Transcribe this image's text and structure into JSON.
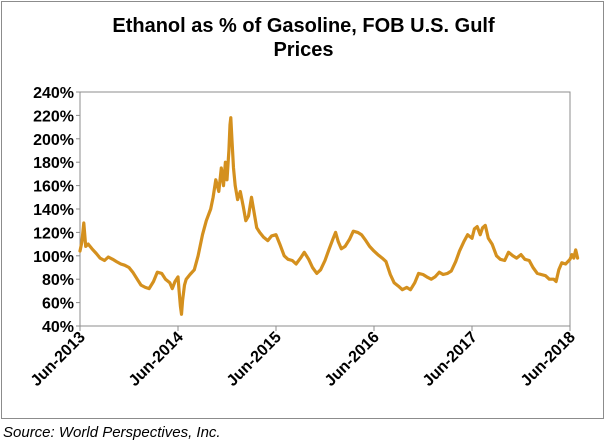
{
  "chart_data": {
    "type": "line",
    "title": "Ethanol as %  of Gasoline, FOB U.S. Gulf Prices",
    "title_lines": [
      "Ethanol as %  of Gasoline, FOB U.S. Gulf",
      "Prices"
    ],
    "xlabel": "",
    "ylabel": "",
    "ylim": [
      40,
      240
    ],
    "y_ticks": [
      40,
      60,
      80,
      100,
      120,
      140,
      160,
      180,
      200,
      220,
      240
    ],
    "y_tick_labels": [
      "40%",
      "60%",
      "80%",
      "100%",
      "120%",
      "140%",
      "160%",
      "180%",
      "200%",
      "220%",
      "240%"
    ],
    "xlim": [
      "2013-06",
      "2018-06"
    ],
    "x_tick_labels": [
      "Jun-2013",
      "Jun-2014",
      "Jun-2015",
      "Jun-2016",
      "Jun-2017",
      "Jun-2018"
    ],
    "grid": false,
    "line_color": "#D4901E",
    "series": [
      {
        "points": [
          [
            "2013-06-01",
            104
          ],
          [
            "2013-06-08",
            112
          ],
          [
            "2013-06-15",
            128
          ],
          [
            "2013-06-22",
            108
          ],
          [
            "2013-07-01",
            110
          ],
          [
            "2013-07-15",
            106
          ],
          [
            "2013-08-01",
            102
          ],
          [
            "2013-08-15",
            98
          ],
          [
            "2013-09-01",
            96
          ],
          [
            "2013-09-15",
            99
          ],
          [
            "2013-10-01",
            97
          ],
          [
            "2013-10-15",
            95
          ],
          [
            "2013-11-01",
            93
          ],
          [
            "2013-11-15",
            92
          ],
          [
            "2013-12-01",
            90
          ],
          [
            "2013-12-15",
            86
          ],
          [
            "2014-01-01",
            80
          ],
          [
            "2014-01-15",
            75
          ],
          [
            "2014-02-01",
            73
          ],
          [
            "2014-02-15",
            72
          ],
          [
            "2014-03-01",
            78
          ],
          [
            "2014-03-15",
            86
          ],
          [
            "2014-04-01",
            85
          ],
          [
            "2014-04-15",
            80
          ],
          [
            "2014-05-01",
            77
          ],
          [
            "2014-05-10",
            72
          ],
          [
            "2014-05-20",
            78
          ],
          [
            "2014-06-01",
            82
          ],
          [
            "2014-06-05",
            70
          ],
          [
            "2014-06-10",
            57
          ],
          [
            "2014-06-14",
            50
          ],
          [
            "2014-06-18",
            62
          ],
          [
            "2014-06-25",
            75
          ],
          [
            "2014-07-01",
            80
          ],
          [
            "2014-07-15",
            84
          ],
          [
            "2014-08-01",
            88
          ],
          [
            "2014-08-15",
            100
          ],
          [
            "2014-09-01",
            118
          ],
          [
            "2014-09-15",
            130
          ],
          [
            "2014-10-01",
            140
          ],
          [
            "2014-10-10",
            150
          ],
          [
            "2014-10-20",
            165
          ],
          [
            "2014-11-01",
            155
          ],
          [
            "2014-11-10",
            175
          ],
          [
            "2014-11-18",
            160
          ],
          [
            "2014-11-25",
            180
          ],
          [
            "2014-12-01",
            165
          ],
          [
            "2014-12-08",
            190
          ],
          [
            "2014-12-12",
            212
          ],
          [
            "2014-12-15",
            218
          ],
          [
            "2014-12-19",
            200
          ],
          [
            "2014-12-25",
            175
          ],
          [
            "2015-01-01",
            160
          ],
          [
            "2015-01-10",
            148
          ],
          [
            "2015-01-20",
            155
          ],
          [
            "2015-02-01",
            142
          ],
          [
            "2015-02-10",
            130
          ],
          [
            "2015-02-20",
            134
          ],
          [
            "2015-03-01",
            150
          ],
          [
            "2015-03-10",
            138
          ],
          [
            "2015-03-20",
            124
          ],
          [
            "2015-04-01",
            120
          ],
          [
            "2015-04-15",
            116
          ],
          [
            "2015-05-01",
            113
          ],
          [
            "2015-05-15",
            117
          ],
          [
            "2015-06-01",
            118
          ],
          [
            "2015-06-15",
            110
          ],
          [
            "2015-07-01",
            100
          ],
          [
            "2015-07-15",
            97
          ],
          [
            "2015-08-01",
            96
          ],
          [
            "2015-08-15",
            93
          ],
          [
            "2015-09-01",
            98
          ],
          [
            "2015-09-15",
            103
          ],
          [
            "2015-10-01",
            97
          ],
          [
            "2015-10-15",
            90
          ],
          [
            "2015-11-01",
            85
          ],
          [
            "2015-11-15",
            88
          ],
          [
            "2015-12-01",
            96
          ],
          [
            "2015-12-15",
            105
          ],
          [
            "2016-01-01",
            115
          ],
          [
            "2016-01-10",
            120
          ],
          [
            "2016-01-20",
            112
          ],
          [
            "2016-02-01",
            106
          ],
          [
            "2016-02-15",
            108
          ],
          [
            "2016-03-01",
            114
          ],
          [
            "2016-03-15",
            121
          ],
          [
            "2016-04-01",
            120
          ],
          [
            "2016-04-15",
            118
          ],
          [
            "2016-05-01",
            113
          ],
          [
            "2016-05-15",
            108
          ],
          [
            "2016-06-01",
            104
          ],
          [
            "2016-06-15",
            101
          ],
          [
            "2016-07-01",
            98
          ],
          [
            "2016-07-15",
            95
          ],
          [
            "2016-08-01",
            84
          ],
          [
            "2016-08-15",
            77
          ],
          [
            "2016-09-01",
            74
          ],
          [
            "2016-09-15",
            71
          ],
          [
            "2016-10-01",
            73
          ],
          [
            "2016-10-15",
            71
          ],
          [
            "2016-11-01",
            77
          ],
          [
            "2016-11-15",
            85
          ],
          [
            "2016-12-01",
            84
          ],
          [
            "2016-12-15",
            82
          ],
          [
            "2017-01-01",
            80
          ],
          [
            "2017-01-15",
            82
          ],
          [
            "2017-02-01",
            86
          ],
          [
            "2017-02-15",
            84
          ],
          [
            "2017-03-01",
            85
          ],
          [
            "2017-03-15",
            87
          ],
          [
            "2017-04-01",
            95
          ],
          [
            "2017-04-15",
            104
          ],
          [
            "2017-05-01",
            112
          ],
          [
            "2017-05-15",
            118
          ],
          [
            "2017-06-01",
            115
          ],
          [
            "2017-06-10",
            123
          ],
          [
            "2017-06-20",
            125
          ],
          [
            "2017-07-01",
            118
          ],
          [
            "2017-07-10",
            124
          ],
          [
            "2017-07-20",
            126
          ],
          [
            "2017-08-01",
            115
          ],
          [
            "2017-08-15",
            110
          ],
          [
            "2017-09-01",
            100
          ],
          [
            "2017-09-15",
            97
          ],
          [
            "2017-10-01",
            96
          ],
          [
            "2017-10-15",
            103
          ],
          [
            "2017-11-01",
            100
          ],
          [
            "2017-11-15",
            98
          ],
          [
            "2017-12-01",
            101
          ],
          [
            "2017-12-15",
            97
          ],
          [
            "2018-01-01",
            96
          ],
          [
            "2018-01-15",
            90
          ],
          [
            "2018-02-01",
            85
          ],
          [
            "2018-02-15",
            84
          ],
          [
            "2018-03-01",
            83
          ],
          [
            "2018-03-15",
            80
          ],
          [
            "2018-04-01",
            80
          ],
          [
            "2018-04-10",
            78
          ],
          [
            "2018-04-20",
            88
          ],
          [
            "2018-05-01",
            94
          ],
          [
            "2018-05-15",
            93
          ],
          [
            "2018-06-01",
            97
          ],
          [
            "2018-06-08",
            101
          ],
          [
            "2018-06-15",
            98
          ],
          [
            "2018-06-22",
            105
          ],
          [
            "2018-06-29",
            98
          ]
        ]
      }
    ]
  },
  "source": "Source: World Perspectives, Inc."
}
